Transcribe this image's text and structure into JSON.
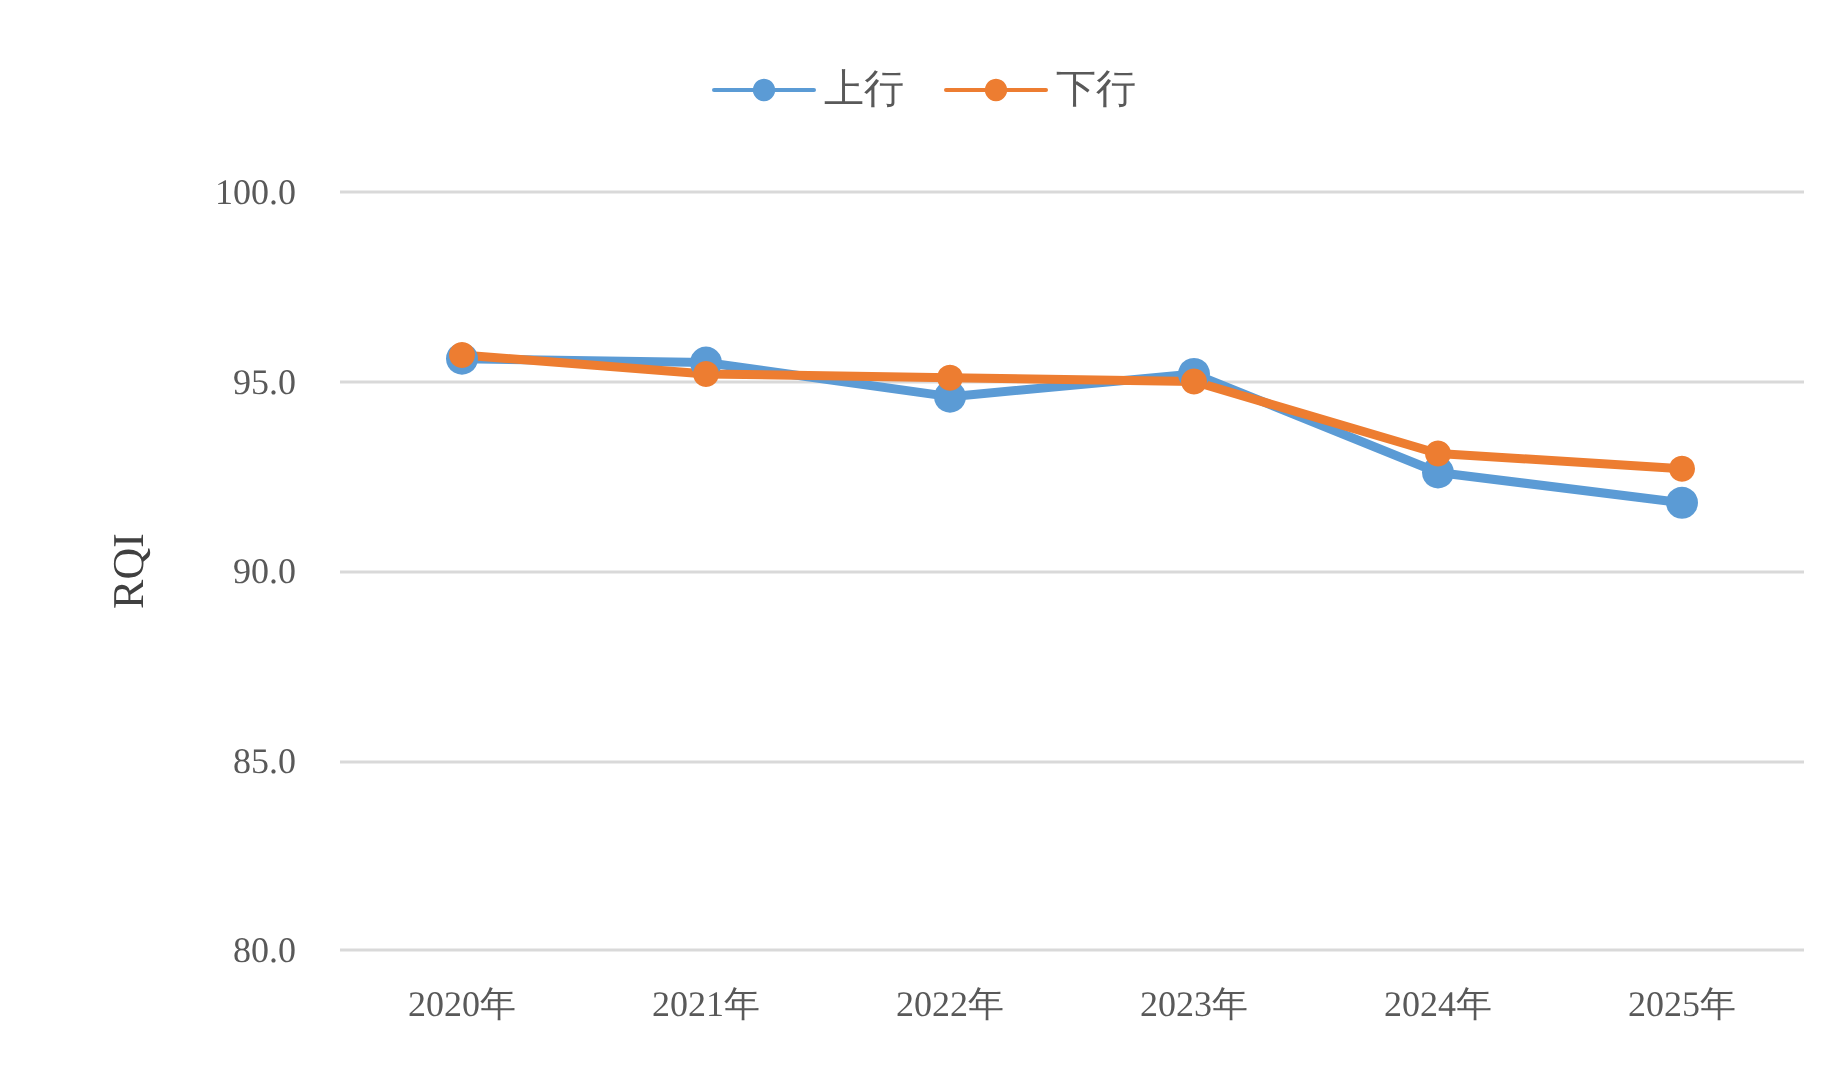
{
  "chart_data": {
    "type": "line",
    "ylabel": "RQI",
    "categories": [
      "2020年",
      "2021年",
      "2022年",
      "2023年",
      "2024年",
      "2025年"
    ],
    "series": [
      {
        "name": "上行",
        "color": "#5b9bd5",
        "values": [
          95.6,
          95.5,
          94.6,
          95.2,
          92.6,
          91.8
        ]
      },
      {
        "name": "下行",
        "color": "#ed7d31",
        "values": [
          95.7,
          95.2,
          95.1,
          95.0,
          93.1,
          92.7
        ]
      }
    ],
    "ylim": [
      80,
      100
    ],
    "yticks": [
      {
        "value": 80,
        "label": "80.0"
      },
      {
        "value": 85,
        "label": "85.0"
      },
      {
        "value": 90,
        "label": "90.0"
      },
      {
        "value": 95,
        "label": "95.0"
      },
      {
        "value": 100,
        "label": "100.0"
      }
    ],
    "grid": "y",
    "legend": "top",
    "marker": "circle",
    "line_style": "solid"
  }
}
